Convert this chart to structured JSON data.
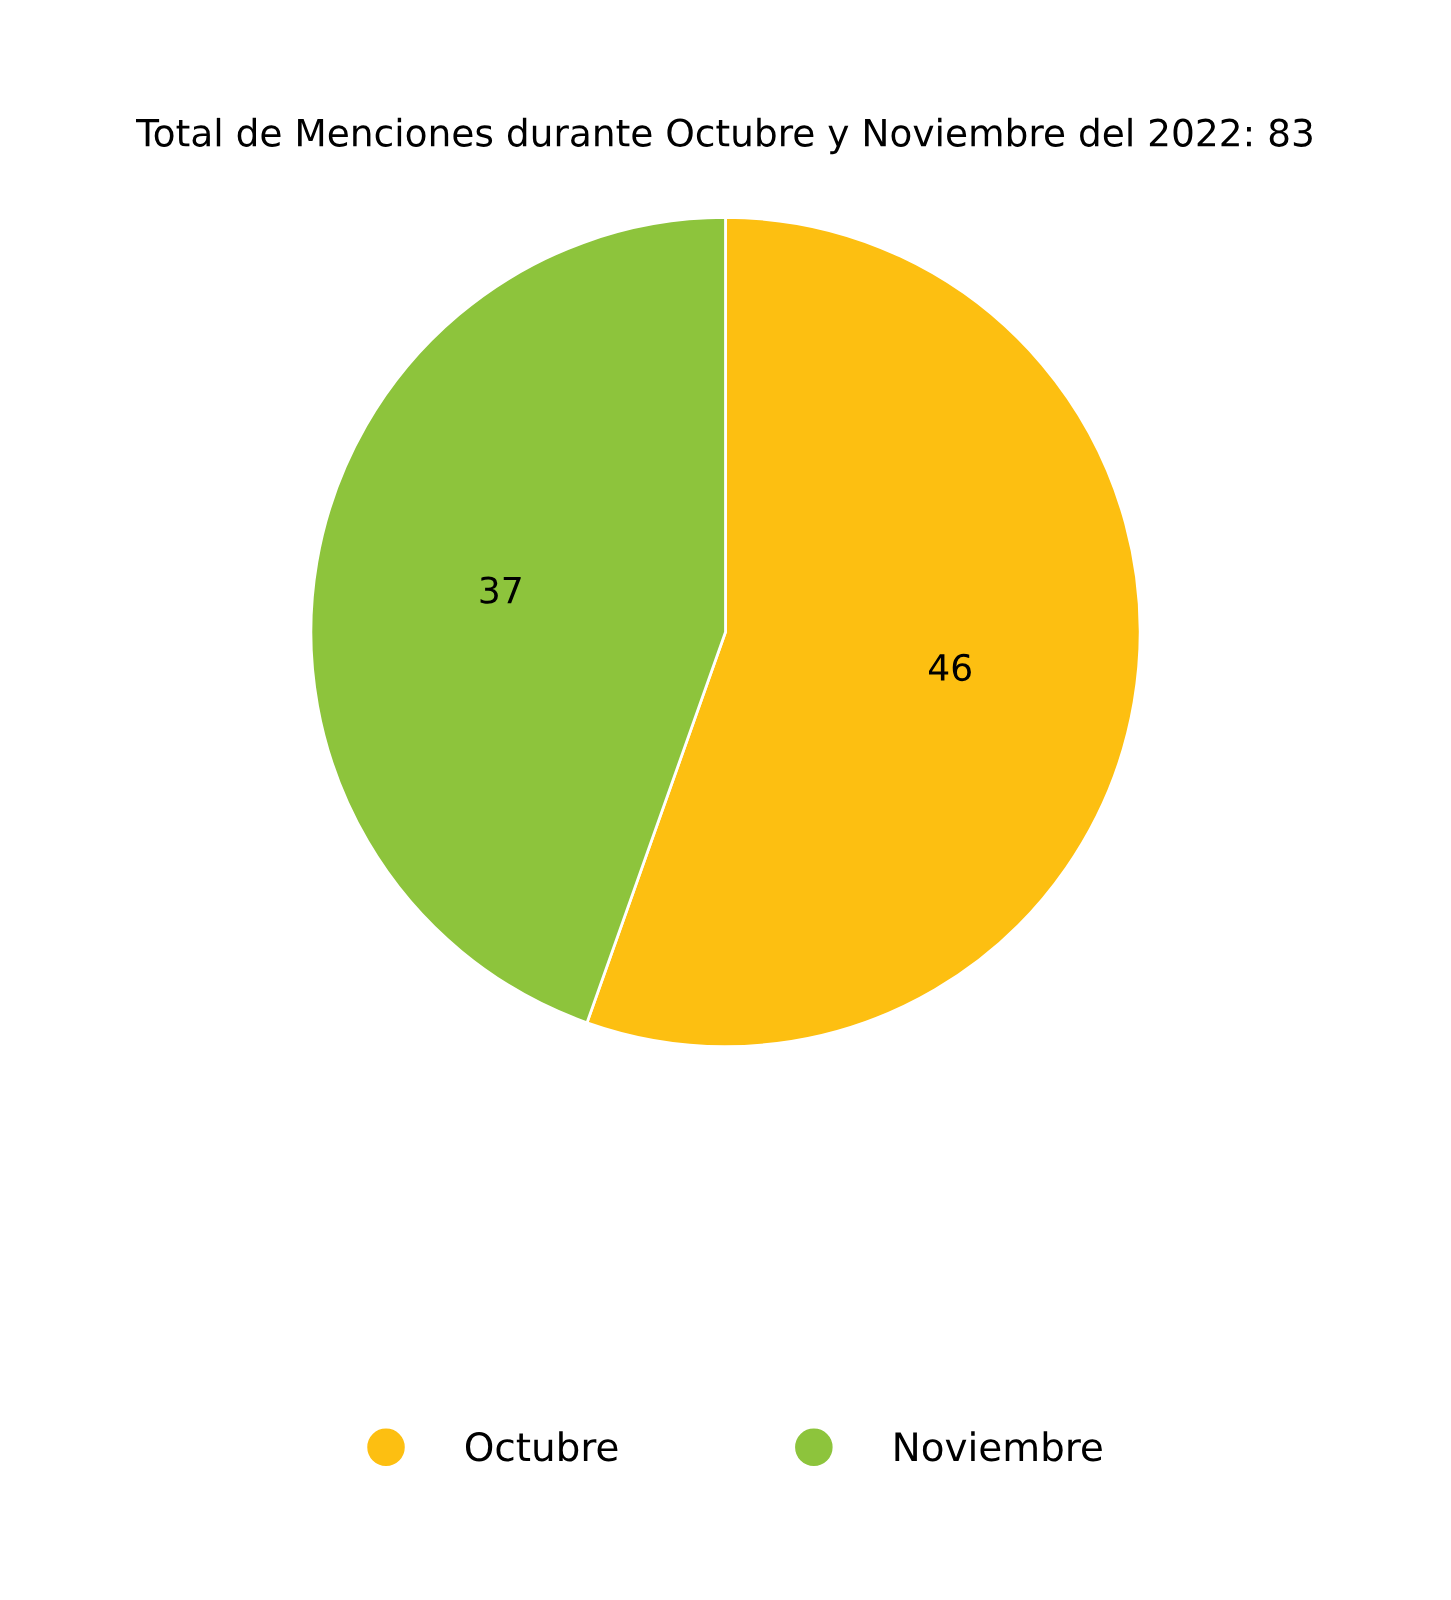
{
  "chart_data": {
    "type": "pie",
    "title": "Total de Menciones durante Octubre y Noviembre del 2022: 83",
    "categories": [
      "Octubre",
      "Noviembre"
    ],
    "values": [
      46,
      37
    ],
    "colors": [
      "#fdbf11",
      "#8dc43c"
    ],
    "data_labels": true,
    "legend": "bottom"
  }
}
